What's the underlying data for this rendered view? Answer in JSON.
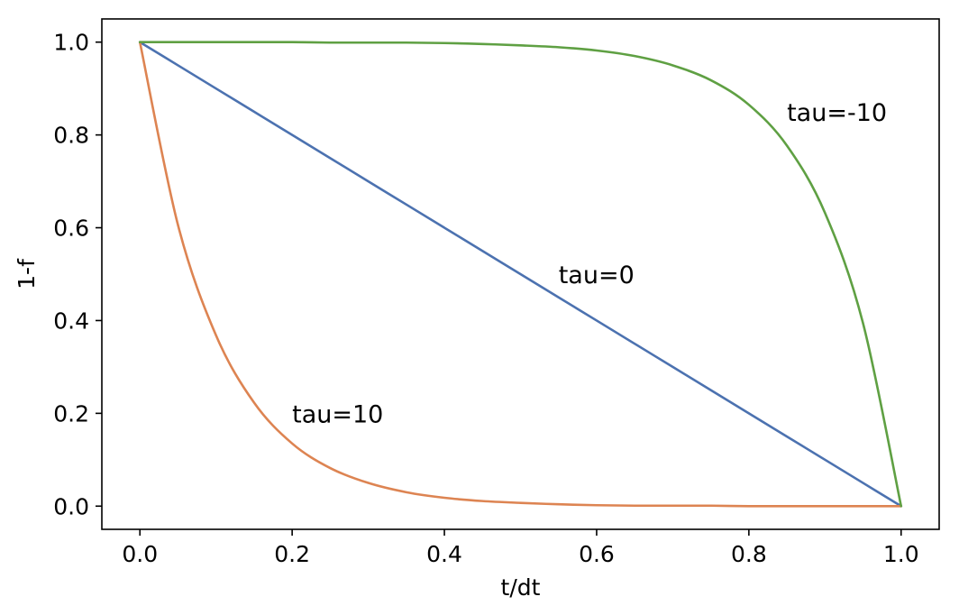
{
  "chart_data": {
    "type": "line",
    "title": "",
    "xlabel": "t/dt",
    "ylabel": "1-f",
    "xlim": [
      -0.05,
      1.05
    ],
    "ylim": [
      -0.05,
      1.05
    ],
    "grid": false,
    "x_ticks": [
      "0.0",
      "0.2",
      "0.4",
      "0.6",
      "0.8",
      "1.0"
    ],
    "x_tick_values": [
      0.0,
      0.2,
      0.4,
      0.6,
      0.8,
      1.0
    ],
    "y_ticks": [
      "0.0",
      "0.2",
      "0.4",
      "0.6",
      "0.8",
      "1.0"
    ],
    "y_tick_values": [
      0.0,
      0.2,
      0.4,
      0.6,
      0.8,
      1.0
    ],
    "x": [
      0.0,
      0.05,
      0.1,
      0.15,
      0.2,
      0.25,
      0.3,
      0.35,
      0.4,
      0.45,
      0.5,
      0.55,
      0.6,
      0.65,
      0.7,
      0.75,
      0.8,
      0.85,
      0.9,
      0.95,
      1.0
    ],
    "series": [
      {
        "color": "#4c72b0",
        "values": [
          1.0,
          0.95,
          0.9,
          0.85,
          0.8,
          0.75,
          0.7,
          0.65,
          0.6,
          0.55,
          0.5,
          0.45,
          0.4,
          0.35,
          0.3,
          0.25,
          0.2,
          0.15,
          0.1,
          0.05,
          0.0
        ]
      },
      {
        "color": "#dd8452",
        "values": [
          1.0,
          0.606,
          0.368,
          0.223,
          0.135,
          0.082,
          0.05,
          0.03,
          0.018,
          0.011,
          0.007,
          0.004,
          0.002,
          0.001,
          0.001,
          0.001,
          0.0,
          0.0,
          0.0,
          0.0,
          0.0
        ]
      },
      {
        "color": "#5fa043",
        "values": [
          1.0,
          1.0,
          1.0,
          1.0,
          1.0,
          0.999,
          0.999,
          0.999,
          0.998,
          0.996,
          0.993,
          0.989,
          0.982,
          0.97,
          0.95,
          0.918,
          0.865,
          0.777,
          0.632,
          0.394,
          0.0
        ]
      }
    ],
    "annotations": [
      {
        "text": "tau=-10",
        "x": 0.85,
        "y": 0.85
      },
      {
        "text": "tau=0",
        "x": 0.55,
        "y": 0.5
      },
      {
        "text": "tau=10",
        "x": 0.2,
        "y": 0.2
      }
    ]
  }
}
